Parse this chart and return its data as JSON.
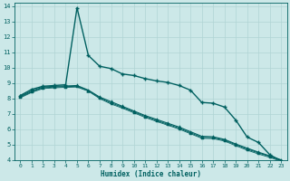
{
  "title": "",
  "xlabel": "Humidex (Indice chaleur)",
  "ylabel": "",
  "bg_color": "#cce8e8",
  "grid_color": "#b0d4d4",
  "line_color": "#006060",
  "xlim": [
    -0.5,
    23.5
  ],
  "ylim": [
    4,
    14.2
  ],
  "xticks": [
    0,
    1,
    2,
    3,
    4,
    5,
    6,
    7,
    8,
    9,
    10,
    11,
    12,
    13,
    14,
    15,
    16,
    17,
    18,
    19,
    20,
    21,
    22,
    23
  ],
  "yticks": [
    4,
    5,
    6,
    7,
    8,
    9,
    10,
    11,
    12,
    13,
    14
  ],
  "series": [
    {
      "x": [
        0,
        1,
        2,
        3,
        4,
        5,
        6,
        7,
        8,
        9,
        10,
        11,
        12,
        13,
        14,
        15,
        16,
        17,
        18,
        19,
        20,
        21,
        22,
        23
      ],
      "y": [
        8.2,
        8.6,
        8.8,
        8.85,
        8.9,
        13.9,
        10.8,
        10.1,
        9.95,
        9.6,
        9.5,
        9.3,
        9.15,
        9.05,
        8.85,
        8.55,
        7.75,
        7.7,
        7.45,
        6.6,
        5.5,
        5.15,
        4.35,
        3.95
      ],
      "marker": "+",
      "markersize": 3.5,
      "linewidth": 1.0,
      "markeredgewidth": 1.0
    },
    {
      "x": [
        0,
        1,
        2,
        3,
        4,
        5,
        6,
        7,
        8,
        9,
        10,
        11,
        12,
        13,
        14,
        15,
        16,
        17,
        18,
        19,
        20,
        21,
        22,
        23
      ],
      "y": [
        8.15,
        8.5,
        8.75,
        8.8,
        8.82,
        8.85,
        8.55,
        8.1,
        7.8,
        7.5,
        7.2,
        6.9,
        6.65,
        6.4,
        6.15,
        5.85,
        5.55,
        5.52,
        5.35,
        5.05,
        4.78,
        4.52,
        4.28,
        4.02
      ],
      "marker": "^",
      "markersize": 2.5,
      "linewidth": 0.8,
      "markeredgewidth": 0.5
    },
    {
      "x": [
        0,
        1,
        2,
        3,
        4,
        5,
        6,
        7,
        8,
        9,
        10,
        11,
        12,
        13,
        14,
        15,
        16,
        17,
        18,
        19,
        20,
        21,
        22,
        23
      ],
      "y": [
        8.1,
        8.45,
        8.7,
        8.75,
        8.78,
        8.8,
        8.52,
        8.05,
        7.72,
        7.44,
        7.14,
        6.84,
        6.58,
        6.33,
        6.08,
        5.78,
        5.48,
        5.46,
        5.3,
        5.0,
        4.72,
        4.47,
        4.24,
        3.98
      ],
      "marker": "^",
      "markersize": 2.0,
      "linewidth": 0.7,
      "markeredgewidth": 0.5
    },
    {
      "x": [
        0,
        1,
        2,
        3,
        4,
        5,
        6,
        7,
        8,
        9,
        10,
        11,
        12,
        13,
        14,
        15,
        16,
        17,
        18,
        19,
        20,
        21,
        22,
        23
      ],
      "y": [
        8.05,
        8.4,
        8.65,
        8.7,
        8.73,
        8.75,
        8.48,
        8.0,
        7.65,
        7.38,
        7.08,
        6.78,
        6.52,
        6.27,
        6.02,
        5.72,
        5.42,
        5.4,
        5.24,
        4.94,
        4.65,
        4.4,
        4.18,
        3.92
      ],
      "marker": null,
      "markersize": 0,
      "linewidth": 0.6,
      "markeredgewidth": 0
    }
  ]
}
